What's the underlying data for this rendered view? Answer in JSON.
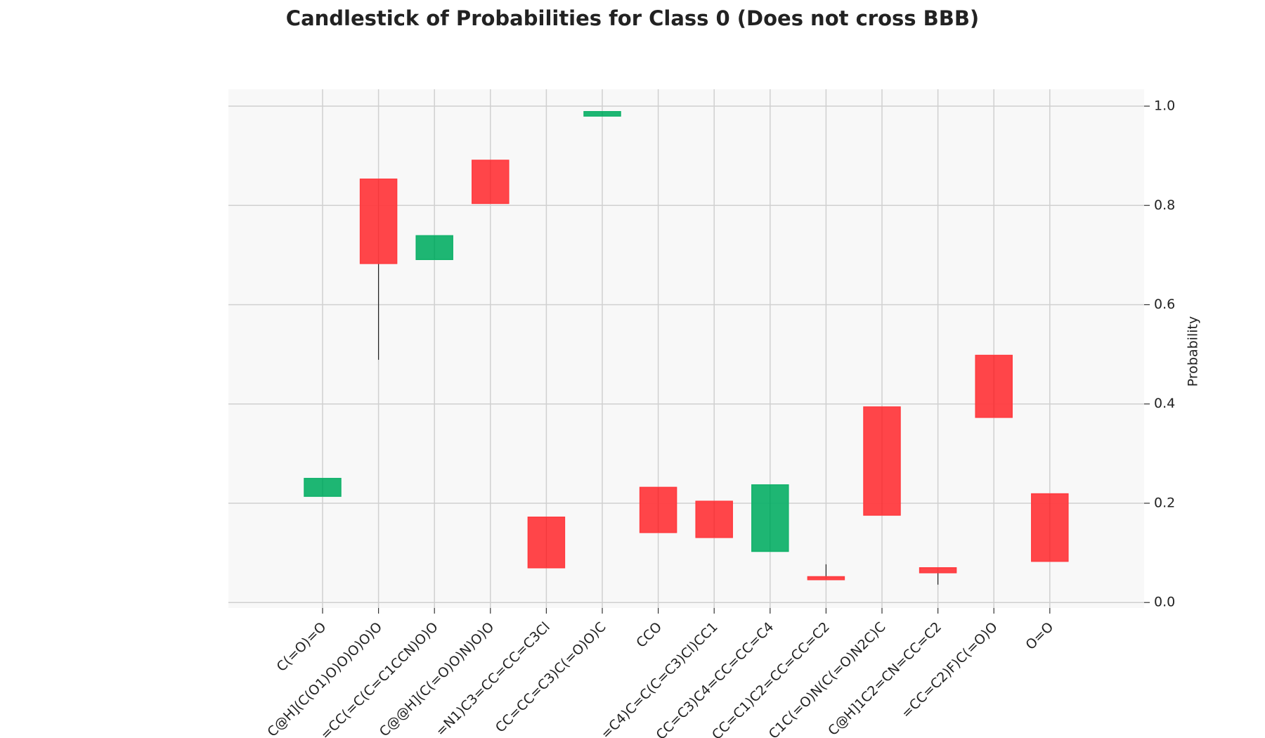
{
  "chart_data": {
    "type": "candlestick",
    "title": "Candlestick of Probabilities for Class 0 (Does not cross BBB)",
    "ylabel": "Probability",
    "categories": [
      "C(=O)=O",
      "C@H](C(O1)O)O)O)O)O",
      "=CC(=C(C=C1CCN)O)O",
      "C@@H](C(=O)O)N)O)O",
      "=N1)C3=CC=CC=C3Cl",
      "CC=CC=C3)C(=O)O)C",
      "CCO",
      "=C4)C=C(C=C3)Cl)CC1",
      "CC=C3)C4=CC=CC=C4",
      "CC=C1)C2=CC=CC=C2",
      "C1C(=O)N(C(=O)N2C)C",
      "C@H]1C2=CN=CC=C2",
      "=CC=C2)F)C(=O)O",
      "O=O"
    ],
    "open": [
      0.214,
      0.853,
      0.691,
      0.891,
      0.172,
      0.98,
      0.232,
      0.204,
      0.103,
      0.052,
      0.394,
      0.07,
      0.498,
      0.219
    ],
    "high": [
      0.25,
      0.853,
      0.739,
      0.891,
      0.172,
      0.989,
      0.232,
      0.204,
      0.237,
      0.077,
      0.394,
      0.07,
      0.498,
      0.219
    ],
    "low": [
      0.214,
      0.489,
      0.691,
      0.804,
      0.07,
      0.98,
      0.141,
      0.131,
      0.103,
      0.046,
      0.176,
      0.036,
      0.373,
      0.083
    ],
    "close": [
      0.25,
      0.683,
      0.739,
      0.804,
      0.07,
      0.989,
      0.141,
      0.131,
      0.237,
      0.046,
      0.176,
      0.06,
      0.373,
      0.083
    ],
    "up_color": "#12b26b",
    "down_color": "#ff3b3f",
    "ylim": [
      -0.011,
      1.034
    ],
    "yticks": [
      {
        "value": 0,
        "label": "0.0"
      },
      0.2,
      0.4,
      0.6,
      0.8,
      {
        "value": 1,
        "label": "1.0"
      }
    ],
    "grid": true
  }
}
